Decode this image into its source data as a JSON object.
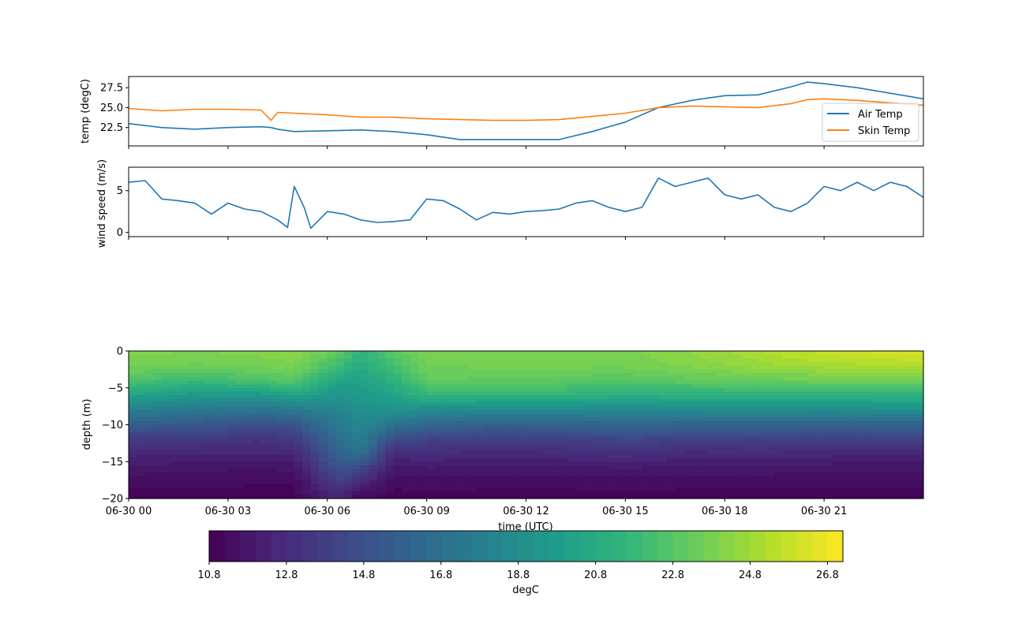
{
  "chart_data": [
    {
      "type": "line",
      "ylabel": "temp (degC)",
      "xlabel": "",
      "ylim": [
        20.2,
        28.9
      ],
      "yticks": [
        "22.5",
        "25.0",
        "27.5"
      ],
      "ytick_values": [
        22.5,
        25.0,
        27.5
      ],
      "legend": "right",
      "x": [
        0,
        1,
        2,
        3,
        4,
        4.3,
        4.5,
        5,
        6,
        7,
        8,
        9,
        10,
        11,
        12,
        13,
        14,
        15,
        16,
        17,
        18,
        19,
        20,
        20.5,
        21,
        22,
        23,
        24
      ],
      "series": [
        {
          "name": "Air Temp",
          "color": "#1f77b4",
          "values": [
            23.0,
            22.5,
            22.3,
            22.5,
            22.6,
            22.5,
            22.3,
            22.0,
            22.1,
            22.2,
            22.0,
            21.6,
            21.0,
            21.0,
            21.0,
            21.0,
            22.0,
            23.2,
            25.0,
            25.9,
            26.5,
            26.6,
            27.6,
            28.2,
            28.0,
            27.5,
            26.8,
            26.1
          ]
        },
        {
          "name": "Skin Temp",
          "color": "#ff7f0e",
          "values": [
            24.9,
            24.6,
            24.8,
            24.8,
            24.7,
            23.4,
            24.4,
            24.3,
            24.1,
            23.8,
            23.8,
            23.6,
            23.5,
            23.4,
            23.4,
            23.5,
            23.9,
            24.3,
            25.0,
            25.2,
            25.1,
            25.0,
            25.5,
            26.0,
            26.1,
            25.9,
            25.6,
            25.3
          ]
        }
      ]
    },
    {
      "type": "line",
      "ylabel": "wind speed (m/s)",
      "ylim": [
        -0.5,
        7.8
      ],
      "yticks": [
        "0",
        "5"
      ],
      "ytick_values": [
        0,
        5
      ],
      "x": [
        0,
        0.5,
        1,
        1.5,
        2,
        2.5,
        3,
        3.5,
        4,
        4.5,
        4.8,
        5,
        5.3,
        5.5,
        6,
        6.5,
        7,
        7.5,
        8,
        8.5,
        9,
        9.5,
        10,
        10.5,
        11,
        11.5,
        12,
        12.5,
        13,
        13.5,
        14,
        14.5,
        15,
        15.5,
        16,
        16.5,
        17,
        17.5,
        18,
        18.5,
        19,
        19.5,
        20,
        20.5,
        21,
        21.5,
        22,
        22.5,
        23,
        23.5,
        24
      ],
      "series": [
        {
          "name": "",
          "color": "#1f77b4",
          "values": [
            6.0,
            6.2,
            4.0,
            3.8,
            3.5,
            2.2,
            3.5,
            2.8,
            2.5,
            1.5,
            0.6,
            5.5,
            3.0,
            0.5,
            2.5,
            2.2,
            1.5,
            1.2,
            1.3,
            1.5,
            4.0,
            3.8,
            2.8,
            1.5,
            2.4,
            2.2,
            2.5,
            2.6,
            2.8,
            3.5,
            3.8,
            3.0,
            2.5,
            3.0,
            6.5,
            5.5,
            6.0,
            6.5,
            4.5,
            4.0,
            4.5,
            3.0,
            2.5,
            3.5,
            5.5,
            5.0,
            6.0,
            5.0,
            6.0,
            5.5,
            4.2
          ]
        }
      ]
    },
    {
      "type": "heatmap",
      "ylabel": "depth (m)",
      "xlabel": "time (UTC)",
      "ylim": [
        -20,
        0
      ],
      "yticks": [
        "0",
        "−5",
        "−10",
        "−15",
        "−20"
      ],
      "ytick_values": [
        0,
        -5,
        -10,
        -15,
        -20
      ],
      "xticks": [
        "06-30 00",
        "06-30 03",
        "06-30 06",
        "06-30 09",
        "06-30 12",
        "06-30 15",
        "06-30 18",
        "06-30 21"
      ],
      "xtick_values": [
        0,
        3,
        6,
        9,
        12,
        15,
        18,
        21
      ],
      "xlim": [
        0,
        24
      ],
      "x": [
        0,
        2,
        4,
        5,
        6.3,
        7,
        8,
        9,
        11,
        13,
        15,
        17,
        19,
        21,
        24
      ],
      "depths": [
        0,
        -2,
        -4,
        -6,
        -8,
        -10,
        -12,
        -14,
        -16,
        -18,
        -20
      ],
      "values": [
        [
          24.2,
          23.7,
          22.6,
          20.3,
          17.9,
          15.6,
          13.7,
          12.5,
          11.8,
          11.3,
          11.0
        ],
        [
          24.0,
          23.5,
          21.8,
          19.6,
          17.4,
          15.2,
          13.5,
          12.4,
          11.7,
          11.3,
          11.0
        ],
        [
          24.2,
          23.7,
          22.6,
          19.6,
          17.1,
          14.8,
          13.3,
          12.3,
          11.6,
          11.2,
          11.0
        ],
        [
          24.3,
          23.9,
          22.9,
          20.3,
          17.5,
          15.0,
          13.5,
          12.5,
          11.7,
          11.2,
          11.0
        ],
        [
          23.5,
          22.0,
          20.4,
          19.2,
          18.3,
          17.4,
          16.6,
          15.8,
          15.0,
          13.6,
          12.5
        ],
        [
          21.4,
          20.8,
          20.2,
          19.6,
          19.0,
          18.5,
          17.9,
          16.8,
          14.3,
          12.4,
          11.2
        ],
        [
          23.0,
          22.3,
          21.2,
          20.3,
          19.2,
          17.0,
          14.5,
          12.6,
          11.8,
          11.3,
          11.0
        ],
        [
          23.8,
          23.6,
          23.2,
          21.5,
          18.8,
          16.2,
          14.1,
          12.8,
          11.9,
          11.4,
          11.0
        ],
        [
          23.9,
          23.7,
          23.1,
          21.5,
          18.5,
          15.8,
          13.8,
          12.5,
          11.8,
          11.3,
          11.0
        ],
        [
          23.9,
          23.7,
          23.0,
          21.5,
          18.5,
          15.9,
          13.9,
          12.7,
          11.8,
          11.3,
          11.0
        ],
        [
          23.9,
          23.7,
          22.8,
          21.0,
          18.7,
          16.2,
          14.2,
          13.0,
          11.9,
          11.4,
          11.0
        ],
        [
          24.4,
          24.1,
          23.1,
          21.2,
          18.7,
          16.0,
          14.0,
          12.6,
          11.8,
          11.3,
          11.0
        ],
        [
          25.2,
          24.6,
          23.4,
          21.3,
          18.9,
          16.0,
          14.1,
          12.7,
          11.8,
          11.3,
          11.0
        ],
        [
          25.8,
          25.0,
          23.5,
          21.3,
          18.7,
          15.9,
          13.9,
          12.5,
          11.7,
          11.3,
          11.0
        ],
        [
          26.4,
          25.3,
          23.7,
          21.3,
          19.1,
          16.0,
          14.0,
          12.5,
          11.7,
          11.3,
          11.0
        ]
      ],
      "colorbar": {
        "label": "degC",
        "vmin": 10.8,
        "vmax": 27.2,
        "ticks": [
          "10.8",
          "12.8",
          "14.8",
          "16.8",
          "18.8",
          "20.8",
          "22.8",
          "24.8",
          "26.8"
        ],
        "tick_values": [
          10.8,
          12.8,
          14.8,
          16.8,
          18.8,
          20.8,
          22.8,
          24.8,
          26.8
        ]
      }
    }
  ]
}
